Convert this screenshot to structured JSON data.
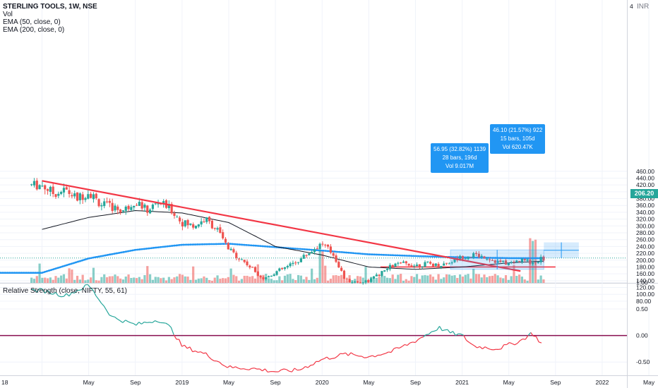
{
  "header": {
    "symbol_line": "STERLING TOOLS, 1W, NSE",
    "vol_label": "Vol",
    "ema50_label": "EMA (50, close, 0)",
    "ema200_label": "EMA (200, close, 0)",
    "currency": "INR"
  },
  "rs_panel": {
    "label": "Relative Strength (close, NIFTY, 55, 61)"
  },
  "last_price": "206.20",
  "measure_1": {
    "line1": "56.95 (32.82%) 1139",
    "line2": "28 bars, 196d",
    "line3": "Vol 9.017M"
  },
  "measure_2": {
    "line1": "46.10 (21.57%) 922",
    "line2": "15 bars, 105d",
    "line3": "Vol 620.47K"
  },
  "colors": {
    "up": "#26a69a",
    "down": "#ef5350",
    "ema50": "#131722",
    "ema200": "#2196f3",
    "trendline": "#f23645",
    "rs_up": "#26a69a",
    "rs_down": "#f23645",
    "zero_line": "#880e4f",
    "price_label": "#26a69a",
    "measure": "#2196f3"
  },
  "chart_data": {
    "type": "candlestick",
    "title": "STERLING TOOLS, 1W, NSE",
    "x_axis": {
      "ticks": [
        "18",
        "May",
        "Sep",
        "2019",
        "May",
        "Sep",
        "2020",
        "May",
        "Sep",
        "2021",
        "May",
        "Sep",
        "2022",
        "May"
      ],
      "range": [
        "2018-01",
        "2022-08"
      ]
    },
    "price_axis": {
      "ticks": [
        "460.00",
        "440.00",
        "420.00",
        "400.00",
        "380.00",
        "360.00",
        "340.00",
        "320.00",
        "300.00",
        "280.00",
        "260.00",
        "240.00",
        "220.00",
        "200.00",
        "180.00",
        "160.00",
        "140.00",
        "120.00",
        "100.00",
        "80.00"
      ],
      "ylim": [
        80,
        470
      ],
      "top_label": "4"
    },
    "rs_axis": {
      "ticks": [
        "1.00",
        "0.50",
        "0.00",
        "-0.50"
      ],
      "ylim": [
        -0.75,
        1.05
      ]
    },
    "price_path": [
      [
        "2018-01",
        420
      ],
      [
        "2018-02",
        395
      ],
      [
        "2018-03",
        405
      ],
      [
        "2018-04",
        380
      ],
      [
        "2018-05",
        400
      ],
      [
        "2018-06",
        365
      ],
      [
        "2018-07",
        355
      ],
      [
        "2018-08",
        345
      ],
      [
        "2018-09",
        375
      ],
      [
        "2018-10",
        345
      ],
      [
        "2018-11",
        370
      ],
      [
        "2018-12",
        350
      ],
      [
        "2019-01",
        310
      ],
      [
        "2019-02",
        300
      ],
      [
        "2019-03",
        320
      ],
      [
        "2019-04",
        290
      ],
      [
        "2019-05",
        230
      ],
      [
        "2019-06",
        205
      ],
      [
        "2019-07",
        175
      ],
      [
        "2019-08",
        145
      ],
      [
        "2019-09",
        165
      ],
      [
        "2019-10",
        180
      ],
      [
        "2019-11",
        200
      ],
      [
        "2019-12",
        225
      ],
      [
        "2020-01",
        250
      ],
      [
        "2020-02",
        215
      ],
      [
        "2020-03",
        140
      ],
      [
        "2020-04",
        135
      ],
      [
        "2020-05",
        140
      ],
      [
        "2020-06",
        160
      ],
      [
        "2020-07",
        185
      ],
      [
        "2020-08",
        190
      ],
      [
        "2020-09",
        185
      ],
      [
        "2020-10",
        190
      ],
      [
        "2020-11",
        185
      ],
      [
        "2020-12",
        195
      ],
      [
        "2021-01",
        210
      ],
      [
        "2021-02",
        215
      ],
      [
        "2021-03",
        210
      ],
      [
        "2021-04",
        195
      ],
      [
        "2021-05",
        190
      ],
      [
        "2021-06",
        200
      ],
      [
        "2021-07",
        195
      ],
      [
        "2021-08",
        206
      ]
    ],
    "ema50": [
      [
        "2018-01",
        290
      ],
      [
        "2018-05",
        325
      ],
      [
        "2018-09",
        345
      ],
      [
        "2019-01",
        338
      ],
      [
        "2019-05",
        310
      ],
      [
        "2019-09",
        240
      ],
      [
        "2020-01",
        215
      ],
      [
        "2020-05",
        180
      ],
      [
        "2020-09",
        173
      ],
      [
        "2021-01",
        180
      ],
      [
        "2021-05",
        192
      ],
      [
        "2021-08",
        197
      ]
    ],
    "ema200": [
      [
        "2018-01",
        163
      ],
      [
        "2018-05",
        205
      ],
      [
        "2018-09",
        230
      ],
      [
        "2019-01",
        245
      ],
      [
        "2019-05",
        248
      ],
      [
        "2019-09",
        238
      ],
      [
        "2020-01",
        228
      ],
      [
        "2020-05",
        217
      ],
      [
        "2020-09",
        212
      ],
      [
        "2021-01",
        208
      ],
      [
        "2021-05",
        206
      ],
      [
        "2021-08",
        206
      ]
    ],
    "trendline": [
      [
        "2018-01",
        432
      ],
      [
        "2021-06",
        168
      ]
    ],
    "support_line": {
      "value": 180,
      "from": "2020-06",
      "to": "2021-09"
    },
    "last_price": 206.2,
    "rs": [
      [
        "2018-01",
        0.85
      ],
      [
        "2018-03",
        0.75
      ],
      [
        "2018-05",
        0.95
      ],
      [
        "2018-07",
        0.35
      ],
      [
        "2018-09",
        0.2
      ],
      [
        "2018-11",
        0.3
      ],
      [
        "2018-12",
        0.15
      ],
      [
        "2019-01",
        -0.2
      ],
      [
        "2019-03",
        -0.35
      ],
      [
        "2019-05",
        -0.6
      ],
      [
        "2019-07",
        -0.62
      ],
      [
        "2019-09",
        -0.68
      ],
      [
        "2019-11",
        -0.65
      ],
      [
        "2020-01",
        -0.45
      ],
      [
        "2020-03",
        -0.35
      ],
      [
        "2020-05",
        -0.4
      ],
      [
        "2020-07",
        -0.3
      ],
      [
        "2020-09",
        -0.1
      ],
      [
        "2020-11",
        0.15
      ],
      [
        "2020-12",
        0.05
      ],
      [
        "2021-01",
        0.0
      ],
      [
        "2021-02",
        -0.2
      ],
      [
        "2021-04",
        -0.25
      ],
      [
        "2021-06",
        -0.1
      ],
      [
        "2021-07",
        0.05
      ],
      [
        "2021-08",
        -0.2
      ]
    ],
    "rs_zero": 0.0
  }
}
